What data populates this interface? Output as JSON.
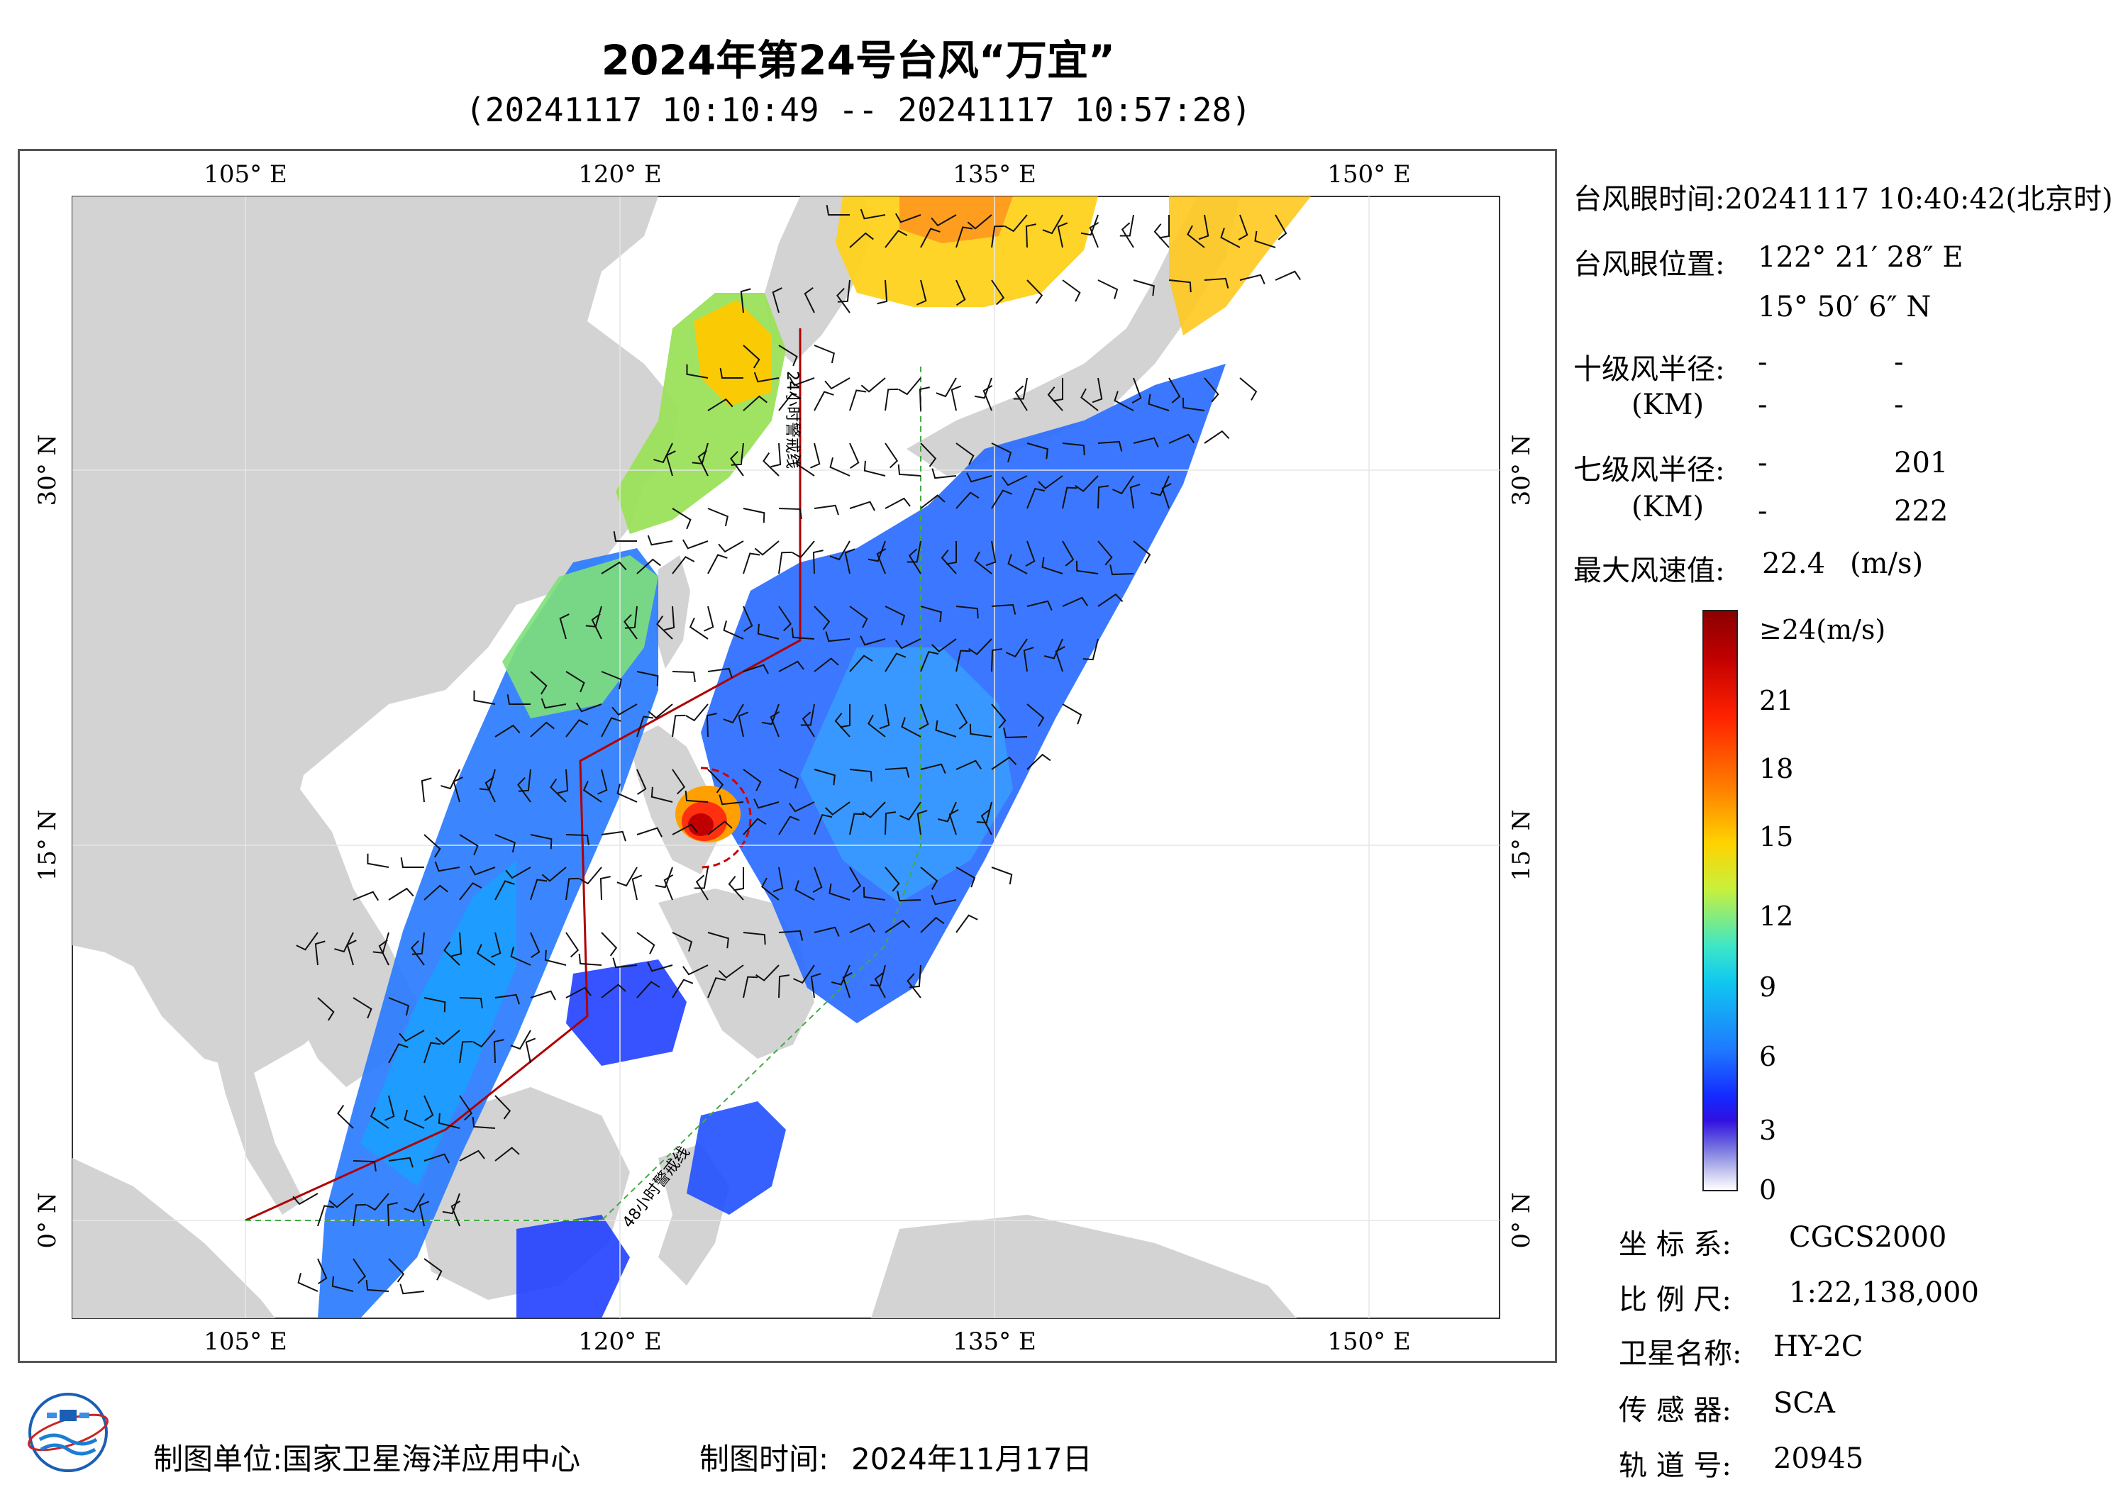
{
  "header": {
    "title": "2024年第24号台风“万宜”",
    "subtitle": "(20241117 10:10:49 -- 20241117 10:57:28)"
  },
  "map": {
    "top_ticks": [
      "105° E",
      "120° E",
      "135° E",
      "150° E"
    ],
    "bottom_ticks": [
      "105° E",
      "120° E",
      "135° E",
      "150° E"
    ],
    "left_ticks": [
      "30° N",
      "15° N",
      "0° N"
    ],
    "right_ticks": [
      "30° N",
      "15° N",
      "0° N"
    ],
    "warning_24h": "24小时警戒线",
    "warning_48h": "48小时警戒线",
    "colors": {
      "land": "#d3d3d3",
      "warning_24h": "#b00000",
      "warning_48h": "#44aa44"
    }
  },
  "info": {
    "eye_time": "台风眼时间:20241117 10:40:42(北京时)",
    "eye_pos_label": "台风眼位置:",
    "eye_lon": "122° 21′ 28″ E",
    "eye_lat": "15° 50′ 6″ N",
    "r10_label": "十级风半径:",
    "r10_unit": "(KM)",
    "r10_values": [
      "-",
      "-",
      "-",
      "-"
    ],
    "r7_label": "七级风半径:",
    "r7_unit": "(KM)",
    "r7_values": [
      "-",
      "201",
      "-",
      "222"
    ],
    "max_wind_label": "最大风速值:",
    "max_wind_value": "22.4",
    "max_wind_unit": "(m/s)"
  },
  "colorbar": {
    "labels": [
      "≥24(m/s)",
      "21",
      "18",
      "15",
      "12",
      "9",
      "6",
      "3",
      "0"
    ]
  },
  "meta": {
    "crs_label": "坐 标 系:",
    "crs_value": "CGCS2000",
    "scale_label": "比 例 尺:",
    "scale_value": "1:22,138,000",
    "satellite_label": "卫星名称:",
    "satellite_value": "HY-2C",
    "sensor_label": "传 感 器:",
    "sensor_value": "SCA",
    "orbit_label": "轨 道 号:",
    "orbit_value": "20945"
  },
  "footer": {
    "producer_label": "制图单位:国家卫星海洋应用中心",
    "date_label": "制图时间:",
    "date_value": "2024年11月17日"
  }
}
